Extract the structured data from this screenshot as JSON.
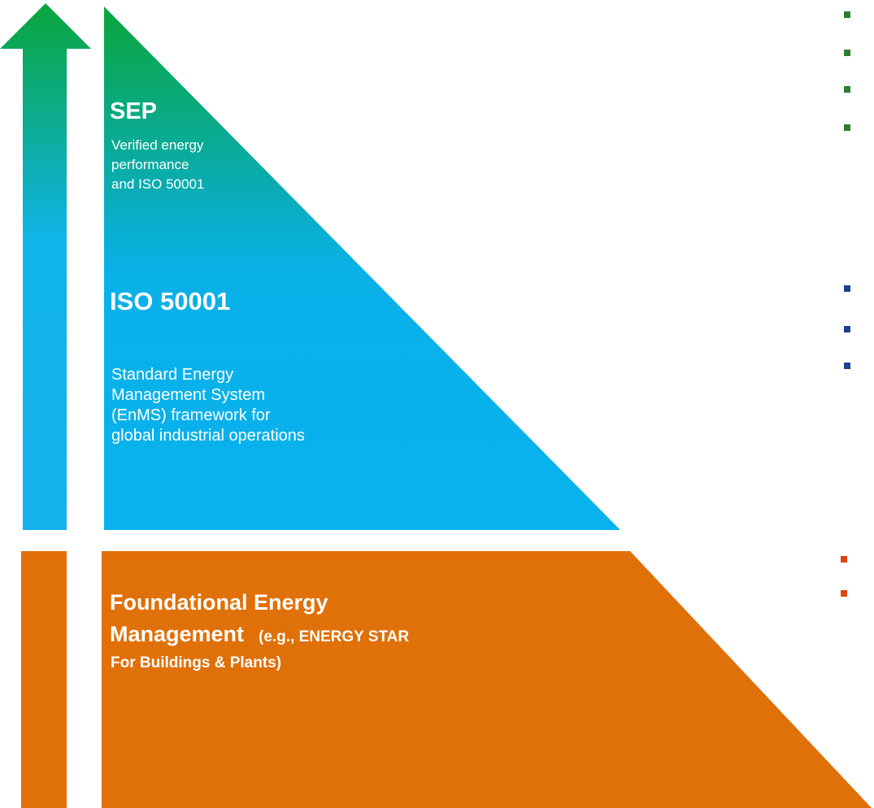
{
  "sep": {
    "title": "SEP",
    "description": [
      "Verified energy",
      "performance",
      "and ISO 50001"
    ]
  },
  "iso": {
    "title": "ISO 50001",
    "description": [
      "Standard Energy",
      "Management System",
      "(EnMS) framework for",
      "global industrial operations"
    ]
  },
  "foundation": {
    "title": [
      "Foundational Energy",
      "Management"
    ],
    "note": [
      "(e.g., ENERGY STAR",
      "For Buildings & Plants)"
    ]
  }
}
